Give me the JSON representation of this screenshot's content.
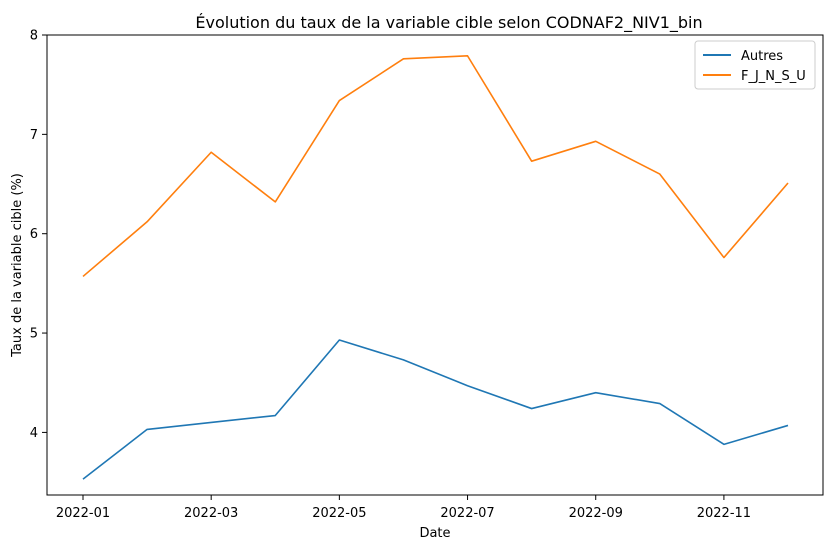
{
  "chart_data": {
    "type": "line",
    "title": "Évolution du taux de la variable cible selon CODNAF2_NIV1_bin",
    "xlabel": "Date",
    "ylabel": "Taux de la variable cible (%)",
    "x": [
      "2022-01",
      "2022-02",
      "2022-03",
      "2022-04",
      "2022-05",
      "2022-06",
      "2022-07",
      "2022-08",
      "2022-09",
      "2022-10",
      "2022-11",
      "2022-12"
    ],
    "x_ticks": [
      "2022-01",
      "2022-03",
      "2022-05",
      "2022-07",
      "2022-09",
      "2022-11"
    ],
    "y_ticks": [
      4,
      5,
      6,
      7,
      8
    ],
    "ylim": [
      3.37,
      8.0
    ],
    "grid": false,
    "legend_position": "top-right",
    "series": [
      {
        "name": "Autres",
        "color": "#1f77b4",
        "values": [
          3.53,
          4.03,
          4.1,
          4.17,
          4.93,
          4.73,
          4.47,
          4.24,
          4.4,
          4.29,
          3.88,
          4.07
        ]
      },
      {
        "name": "F_J_N_S_U",
        "color": "#ff7f0e",
        "values": [
          5.57,
          6.12,
          6.82,
          6.32,
          7.34,
          7.76,
          7.79,
          6.73,
          6.93,
          6.6,
          5.76,
          6.51
        ]
      }
    ]
  }
}
